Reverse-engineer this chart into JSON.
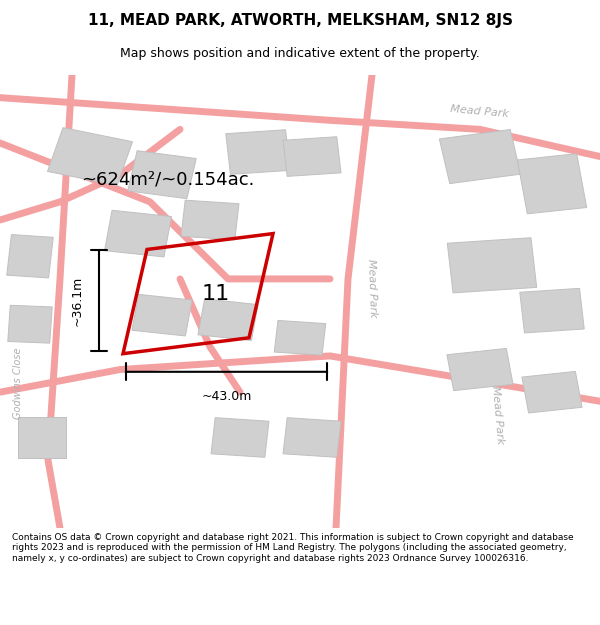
{
  "title_line1": "11, MEAD PARK, ATWORTH, MELKSHAM, SN12 8JS",
  "title_line2": "Map shows position and indicative extent of the property.",
  "area_text": "~624m²/~0.154ac.",
  "label_number": "11",
  "dim_width": "~43.0m",
  "dim_height": "~36.1m",
  "street_label1": "Mead Park",
  "street_label2": "Mead Park",
  "street_label3": "Godwins Close",
  "footer_text": "Contains OS data © Crown copyright and database right 2021. This information is subject to Crown copyright and database rights 2023 and is reproduced with the permission of HM Land Registry. The polygons (including the associated geometry, namely x, y co-ordinates) are subject to Crown copyright and database rights 2023 Ordnance Survey 100026316.",
  "bg_color": "#ffffff",
  "map_bg": "#f9f0f0",
  "plot_outline_color": "#cc0000",
  "road_color": "#f4a0a0",
  "building_color": "#d0d0d0",
  "building_outline": "#c0c0c0",
  "street_text_color": "#b0b0b0",
  "figsize": [
    6.0,
    6.25
  ],
  "dpi": 100
}
